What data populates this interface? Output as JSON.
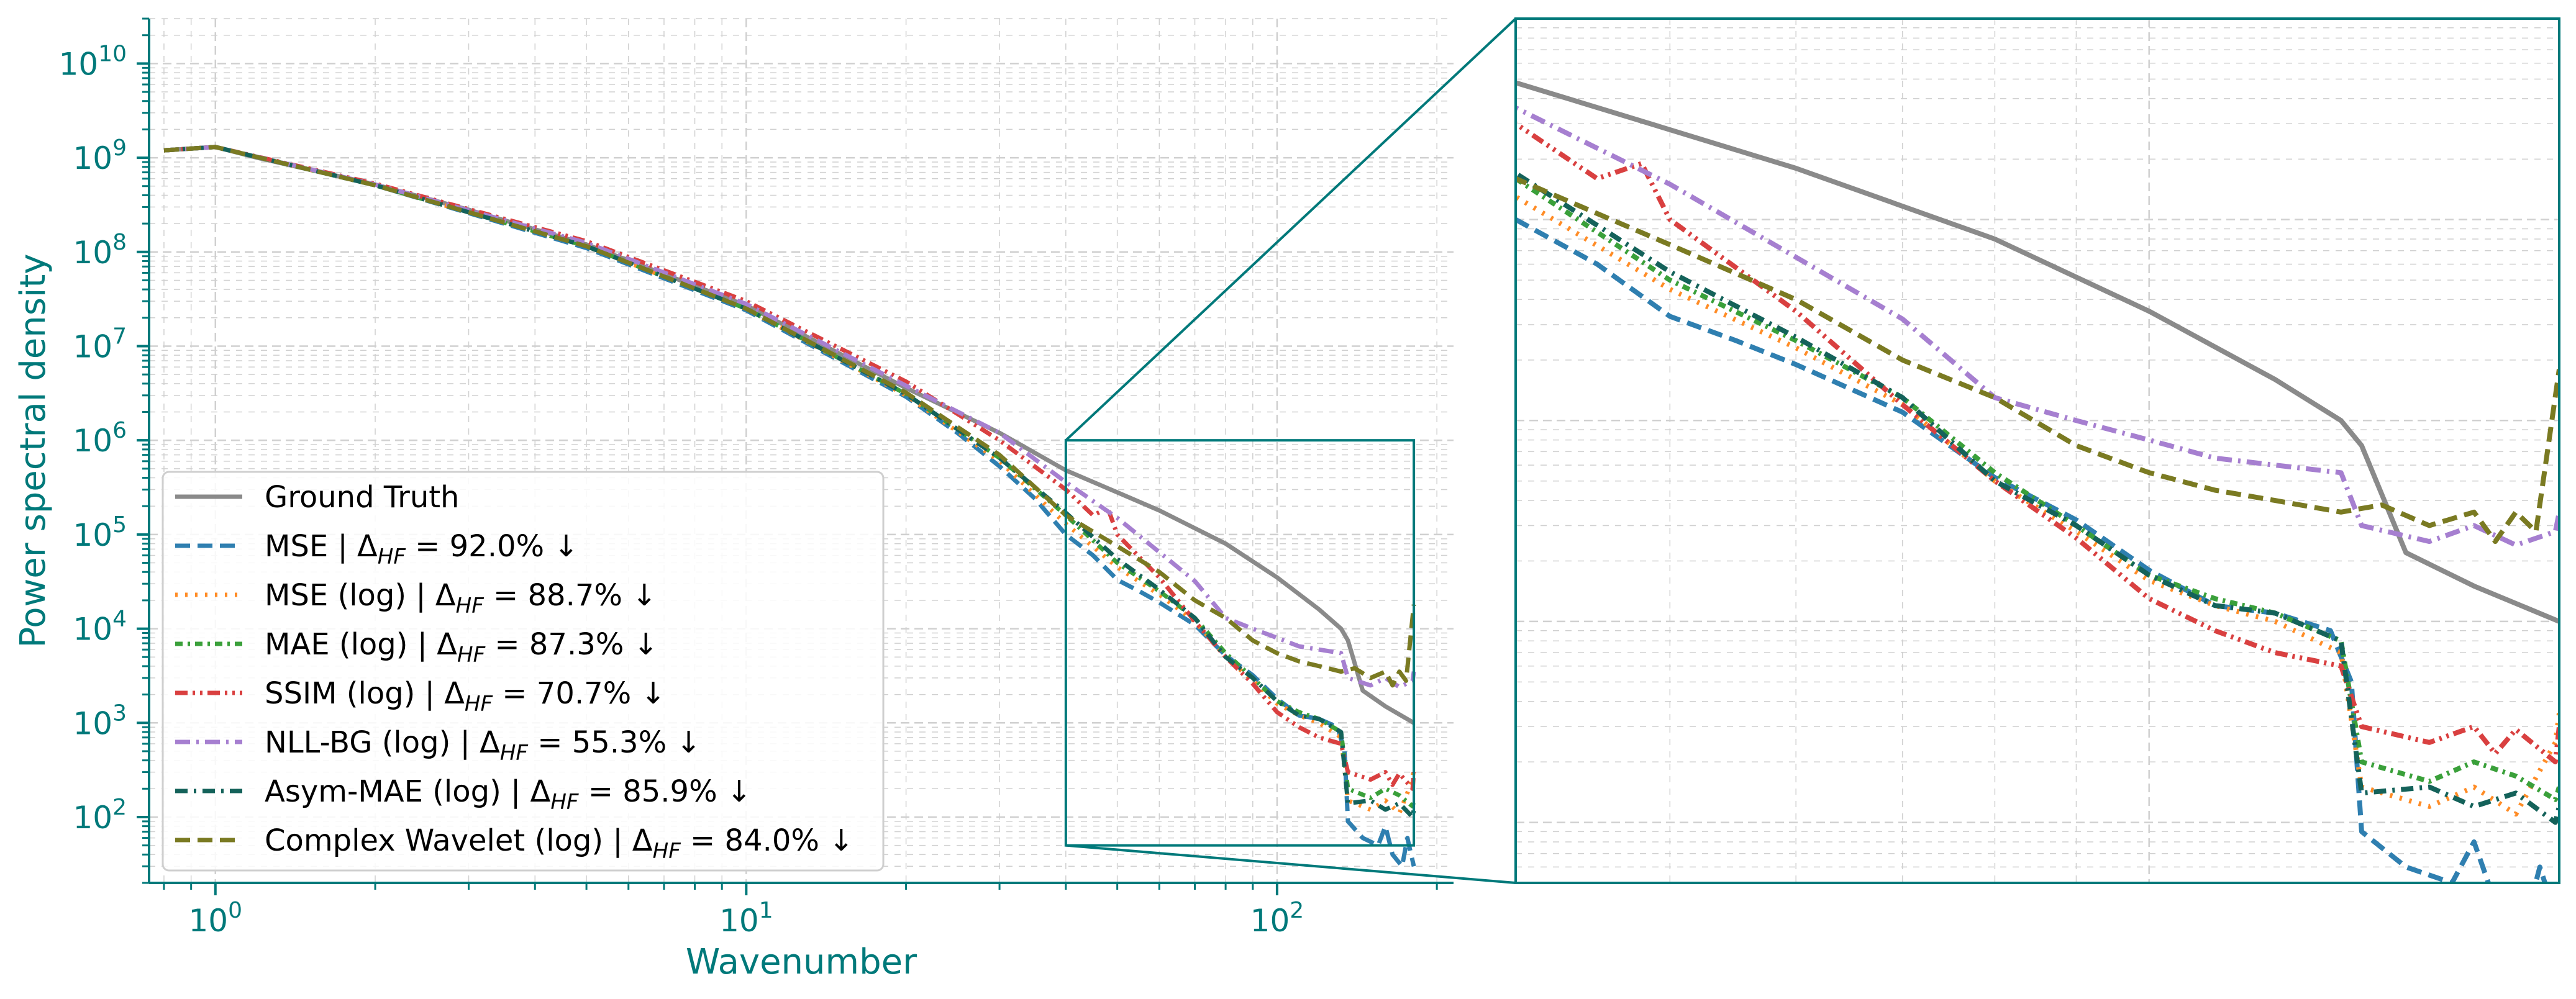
{
  "colors": {
    "axis": "#00797a",
    "grid": "#d0d0d0",
    "zoom_box": "#00797a"
  },
  "chart_data": [
    {
      "type": "line",
      "scale": "log-log",
      "xlabel": "Wavenumber",
      "ylabel": "Power spectral density",
      "xlim": [
        0.75,
        215
      ],
      "ylim": [
        20,
        30000000000.0
      ],
      "x_ticks": [
        {
          "value": 1,
          "mant": "10",
          "exp": "0"
        },
        {
          "value": 10,
          "mant": "10",
          "exp": "1"
        },
        {
          "value": 100,
          "mant": "10",
          "exp": "2"
        }
      ],
      "y_ticks": [
        {
          "value": 100,
          "mant": "10",
          "exp": "2"
        },
        {
          "value": 1000,
          "mant": "10",
          "exp": "3"
        },
        {
          "value": 10000,
          "mant": "10",
          "exp": "4"
        },
        {
          "value": 100000,
          "mant": "10",
          "exp": "5"
        },
        {
          "value": 1000000,
          "mant": "10",
          "exp": "6"
        },
        {
          "value": 10000000,
          "mant": "10",
          "exp": "7"
        },
        {
          "value": 100000000,
          "mant": "10",
          "exp": "8"
        },
        {
          "value": 1000000000,
          "mant": "10",
          "exp": "9"
        },
        {
          "value": 10000000000,
          "mant": "10",
          "exp": "10"
        }
      ],
      "grid": true,
      "legend_position": "lower-left",
      "inset_region": {
        "x": [
          40,
          181
        ],
        "y": [
          50,
          1000000
        ]
      },
      "series": [
        {
          "name": "Ground Truth",
          "legend": {
            "label": "Ground Truth",
            "delta": ""
          },
          "color": "#8a8a8a",
          "dash": "",
          "width": 7,
          "points": [
            [
              0.8,
              1200000000.0
            ],
            [
              1,
              1300000000.0
            ],
            [
              1.2,
              1000000000.0
            ],
            [
              2,
              520000000.0
            ],
            [
              3,
              280000000.0
            ],
            [
              5,
              120000000.0
            ],
            [
              10,
              27000000.0
            ],
            [
              20,
              3600000.0
            ],
            [
              30,
              1200000.0
            ],
            [
              40,
              480000.0
            ],
            [
              50,
              280000.0
            ],
            [
              60,
              180000.0
            ],
            [
              80,
              80000.0
            ],
            [
              100,
              35000.0
            ],
            [
              120,
              16000.0
            ],
            [
              132,
              10000.0
            ],
            [
              136,
              7500.0
            ],
            [
              145,
              2200.0
            ],
            [
              160,
              1500.0
            ],
            [
              181,
              1000.0
            ]
          ]
        },
        {
          "name": "MSE",
          "legend": {
            "label": "MSE",
            "delta": "92.0%"
          },
          "color": "#2f7fb0",
          "dash": "24 12",
          "width": 7,
          "points": [
            [
              0.8,
              1200000000.0
            ],
            [
              1,
              1300000000.0
            ],
            [
              2,
              510000000.0
            ],
            [
              5,
              110000000.0
            ],
            [
              10,
              24000000.0
            ],
            [
              20,
              2900000.0
            ],
            [
              25,
              1200000.0
            ],
            [
              30,
              530000.0
            ],
            [
              35,
              240000.0
            ],
            [
              40,
              100000.0
            ],
            [
              45,
              60000.0
            ],
            [
              50,
              33000.0
            ],
            [
              55,
              25000.0
            ],
            [
              60,
              19000.0
            ],
            [
              70,
              11000.0
            ],
            [
              80,
              5200.0
            ],
            [
              90,
              3200.0
            ],
            [
              100,
              1800.0
            ],
            [
              110,
              1200.0
            ],
            [
              120,
              1100.0
            ],
            [
              130,
              900.0
            ],
            [
              134,
              500.0
            ],
            [
              136,
              90
            ],
            [
              145,
              60
            ],
            [
              155,
              50
            ],
            [
              160,
              80
            ],
            [
              165,
              40
            ],
            [
              172,
              30
            ],
            [
              176,
              60
            ],
            [
              181,
              30
            ]
          ]
        },
        {
          "name": "MSE (log)",
          "legend": {
            "label": "MSE (log)",
            "delta": "88.7%"
          },
          "color": "#ff8c26",
          "dash": "4 12",
          "width": 7,
          "points": [
            [
              0.8,
              1200000000.0
            ],
            [
              1,
              1300000000.0
            ],
            [
              2,
              510000000.0
            ],
            [
              5,
              115000000.0
            ],
            [
              10,
              25000000.0
            ],
            [
              20,
              3000000.0
            ],
            [
              30,
              600000.0
            ],
            [
              40,
              130000.0
            ],
            [
              50,
              45000.0
            ],
            [
              60,
              23000.0
            ],
            [
              70,
              12000.0
            ],
            [
              80,
              5000.0
            ],
            [
              90,
              2800.0
            ],
            [
              100,
              1600.0
            ],
            [
              110,
              1200.0
            ],
            [
              120,
              1000.0
            ],
            [
              132,
              700.0
            ],
            [
              136,
              150
            ],
            [
              150,
              120
            ],
            [
              160,
              150
            ],
            [
              170,
              110
            ],
            [
              180,
              250
            ],
            [
              181,
              350
            ]
          ]
        },
        {
          "name": "MAE (log)",
          "legend": {
            "label": "MAE (log)",
            "delta": "87.3%"
          },
          "color": "#3aa03a",
          "dash": "12 8 4 8",
          "width": 7,
          "points": [
            [
              0.8,
              1200000000.0
            ],
            [
              1,
              1300000000.0
            ],
            [
              2,
              510000000.0
            ],
            [
              5,
              115000000.0
            ],
            [
              10,
              25000000.0
            ],
            [
              20,
              3100000.0
            ],
            [
              30,
              650000.0
            ],
            [
              40,
              160000.0
            ],
            [
              50,
              50000.0
            ],
            [
              60,
              25000.0
            ],
            [
              70,
              13000.0
            ],
            [
              80,
              5500.0
            ],
            [
              90,
              3000.0
            ],
            [
              100,
              1700.0
            ],
            [
              110,
              1300.0
            ],
            [
              120,
              1100.0
            ],
            [
              132,
              800.0
            ],
            [
              136,
              200
            ],
            [
              150,
              160
            ],
            [
              160,
              200
            ],
            [
              170,
              170
            ],
            [
              180,
              130
            ],
            [
              181,
              150
            ]
          ]
        },
        {
          "name": "SSIM (log)",
          "legend": {
            "label": "SSIM (log)",
            "delta": "70.7%"
          },
          "color": "#d94040",
          "dash": "20 8 4 8 4 8",
          "width": 7,
          "points": [
            [
              0.8,
              1200000000.0
            ],
            [
              1,
              1300000000.0
            ],
            [
              2,
              530000000.0
            ],
            [
              5,
              130000000.0
            ],
            [
              10,
              30000000.0
            ],
            [
              20,
              4200000.0
            ],
            [
              30,
              1000000.0
            ],
            [
              40,
              300000.0
            ],
            [
              45,
              160000.0
            ],
            [
              48,
              190000.0
            ],
            [
              50,
              100000.0
            ],
            [
              60,
              35000.0
            ],
            [
              70,
              12000.0
            ],
            [
              80,
              5000.0
            ],
            [
              90,
              2600.0
            ],
            [
              100,
              1300.0
            ],
            [
              110,
              900.0
            ],
            [
              120,
              700.0
            ],
            [
              132,
              600.0
            ],
            [
              136,
              300
            ],
            [
              150,
              250
            ],
            [
              160,
              300
            ],
            [
              165,
              220
            ],
            [
              170,
              290
            ],
            [
              180,
              200
            ],
            [
              181,
              300
            ]
          ]
        },
        {
          "name": "NLL-BG (log)",
          "legend": {
            "label": "NLL-BG (log)",
            "delta": "55.3%"
          },
          "color": "#a67fd0",
          "dash": "24 10 4 10",
          "width": 7,
          "points": [
            [
              0.8,
              1200000000.0
            ],
            [
              1,
              1300000000.0
            ],
            [
              2,
              520000000.0
            ],
            [
              5,
              125000000.0
            ],
            [
              10,
              28000000.0
            ],
            [
              20,
              3800000.0
            ],
            [
              30,
              1200000.0
            ],
            [
              40,
              360000.0
            ],
            [
              50,
              150000.0
            ],
            [
              60,
              65000.0
            ],
            [
              70,
              32000.0
            ],
            [
              80,
              13000.0
            ],
            [
              90,
              10000.0
            ],
            [
              100,
              8000.0
            ],
            [
              110,
              6500.0
            ],
            [
              120,
              6000.0
            ],
            [
              132,
              5500.0
            ],
            [
              136,
              3000.0
            ],
            [
              150,
              2500.0
            ],
            [
              160,
              3000.0
            ],
            [
              170,
              2400.0
            ],
            [
              180,
              2800.0
            ],
            [
              181,
              3500.0
            ]
          ]
        },
        {
          "name": "Asym-MAE (log)",
          "legend": {
            "label": "Asym-MAE (log)",
            "delta": "85.9%"
          },
          "color": "#14625a",
          "dash": "20 10 4 10",
          "width": 7,
          "points": [
            [
              0.8,
              1200000000.0
            ],
            [
              1,
              1300000000.0
            ],
            [
              2,
              510000000.0
            ],
            [
              5,
              115000000.0
            ],
            [
              10,
              25000000.0
            ],
            [
              20,
              3100000.0
            ],
            [
              30,
              650000.0
            ],
            [
              40,
              170000.0
            ],
            [
              50,
              55000.0
            ],
            [
              60,
              26000.0
            ],
            [
              70,
              13000.0
            ],
            [
              80,
              5000.0
            ],
            [
              90,
              3000.0
            ],
            [
              100,
              1700.0
            ],
            [
              110,
              1200.0
            ],
            [
              120,
              1100.0
            ],
            [
              132,
              800.0
            ],
            [
              136,
              140
            ],
            [
              150,
              150
            ],
            [
              160,
              120
            ],
            [
              170,
              140
            ],
            [
              180,
              100
            ],
            [
              181,
              120
            ]
          ]
        },
        {
          "name": "Complex Wavelet (log)",
          "legend": {
            "label": "Complex Wavelet (log)",
            "delta": "84.0%"
          },
          "color": "#7a7a22",
          "dash": "24 12",
          "width": 7,
          "points": [
            [
              0.8,
              1200000000.0
            ],
            [
              1,
              1300000000.0
            ],
            [
              2,
              510000000.0
            ],
            [
              5,
              115000000.0
            ],
            [
              10,
              25000000.0
            ],
            [
              20,
              3200000.0
            ],
            [
              30,
              700000.0
            ],
            [
              40,
              160000.0
            ],
            [
              50,
              75000.0
            ],
            [
              60,
              40000.0
            ],
            [
              70,
              20000.0
            ],
            [
              80,
              13000.0
            ],
            [
              90,
              7500.0
            ],
            [
              100,
              5500.0
            ],
            [
              110,
              4500.0
            ],
            [
              120,
              4000.0
            ],
            [
              132,
              3500.0
            ],
            [
              140,
              3800.0
            ],
            [
              150,
              3000.0
            ],
            [
              160,
              3500.0
            ],
            [
              165,
              2500.0
            ],
            [
              170,
              3500.0
            ],
            [
              175,
              2800.0
            ],
            [
              181,
              18000.0
            ]
          ]
        }
      ]
    }
  ]
}
